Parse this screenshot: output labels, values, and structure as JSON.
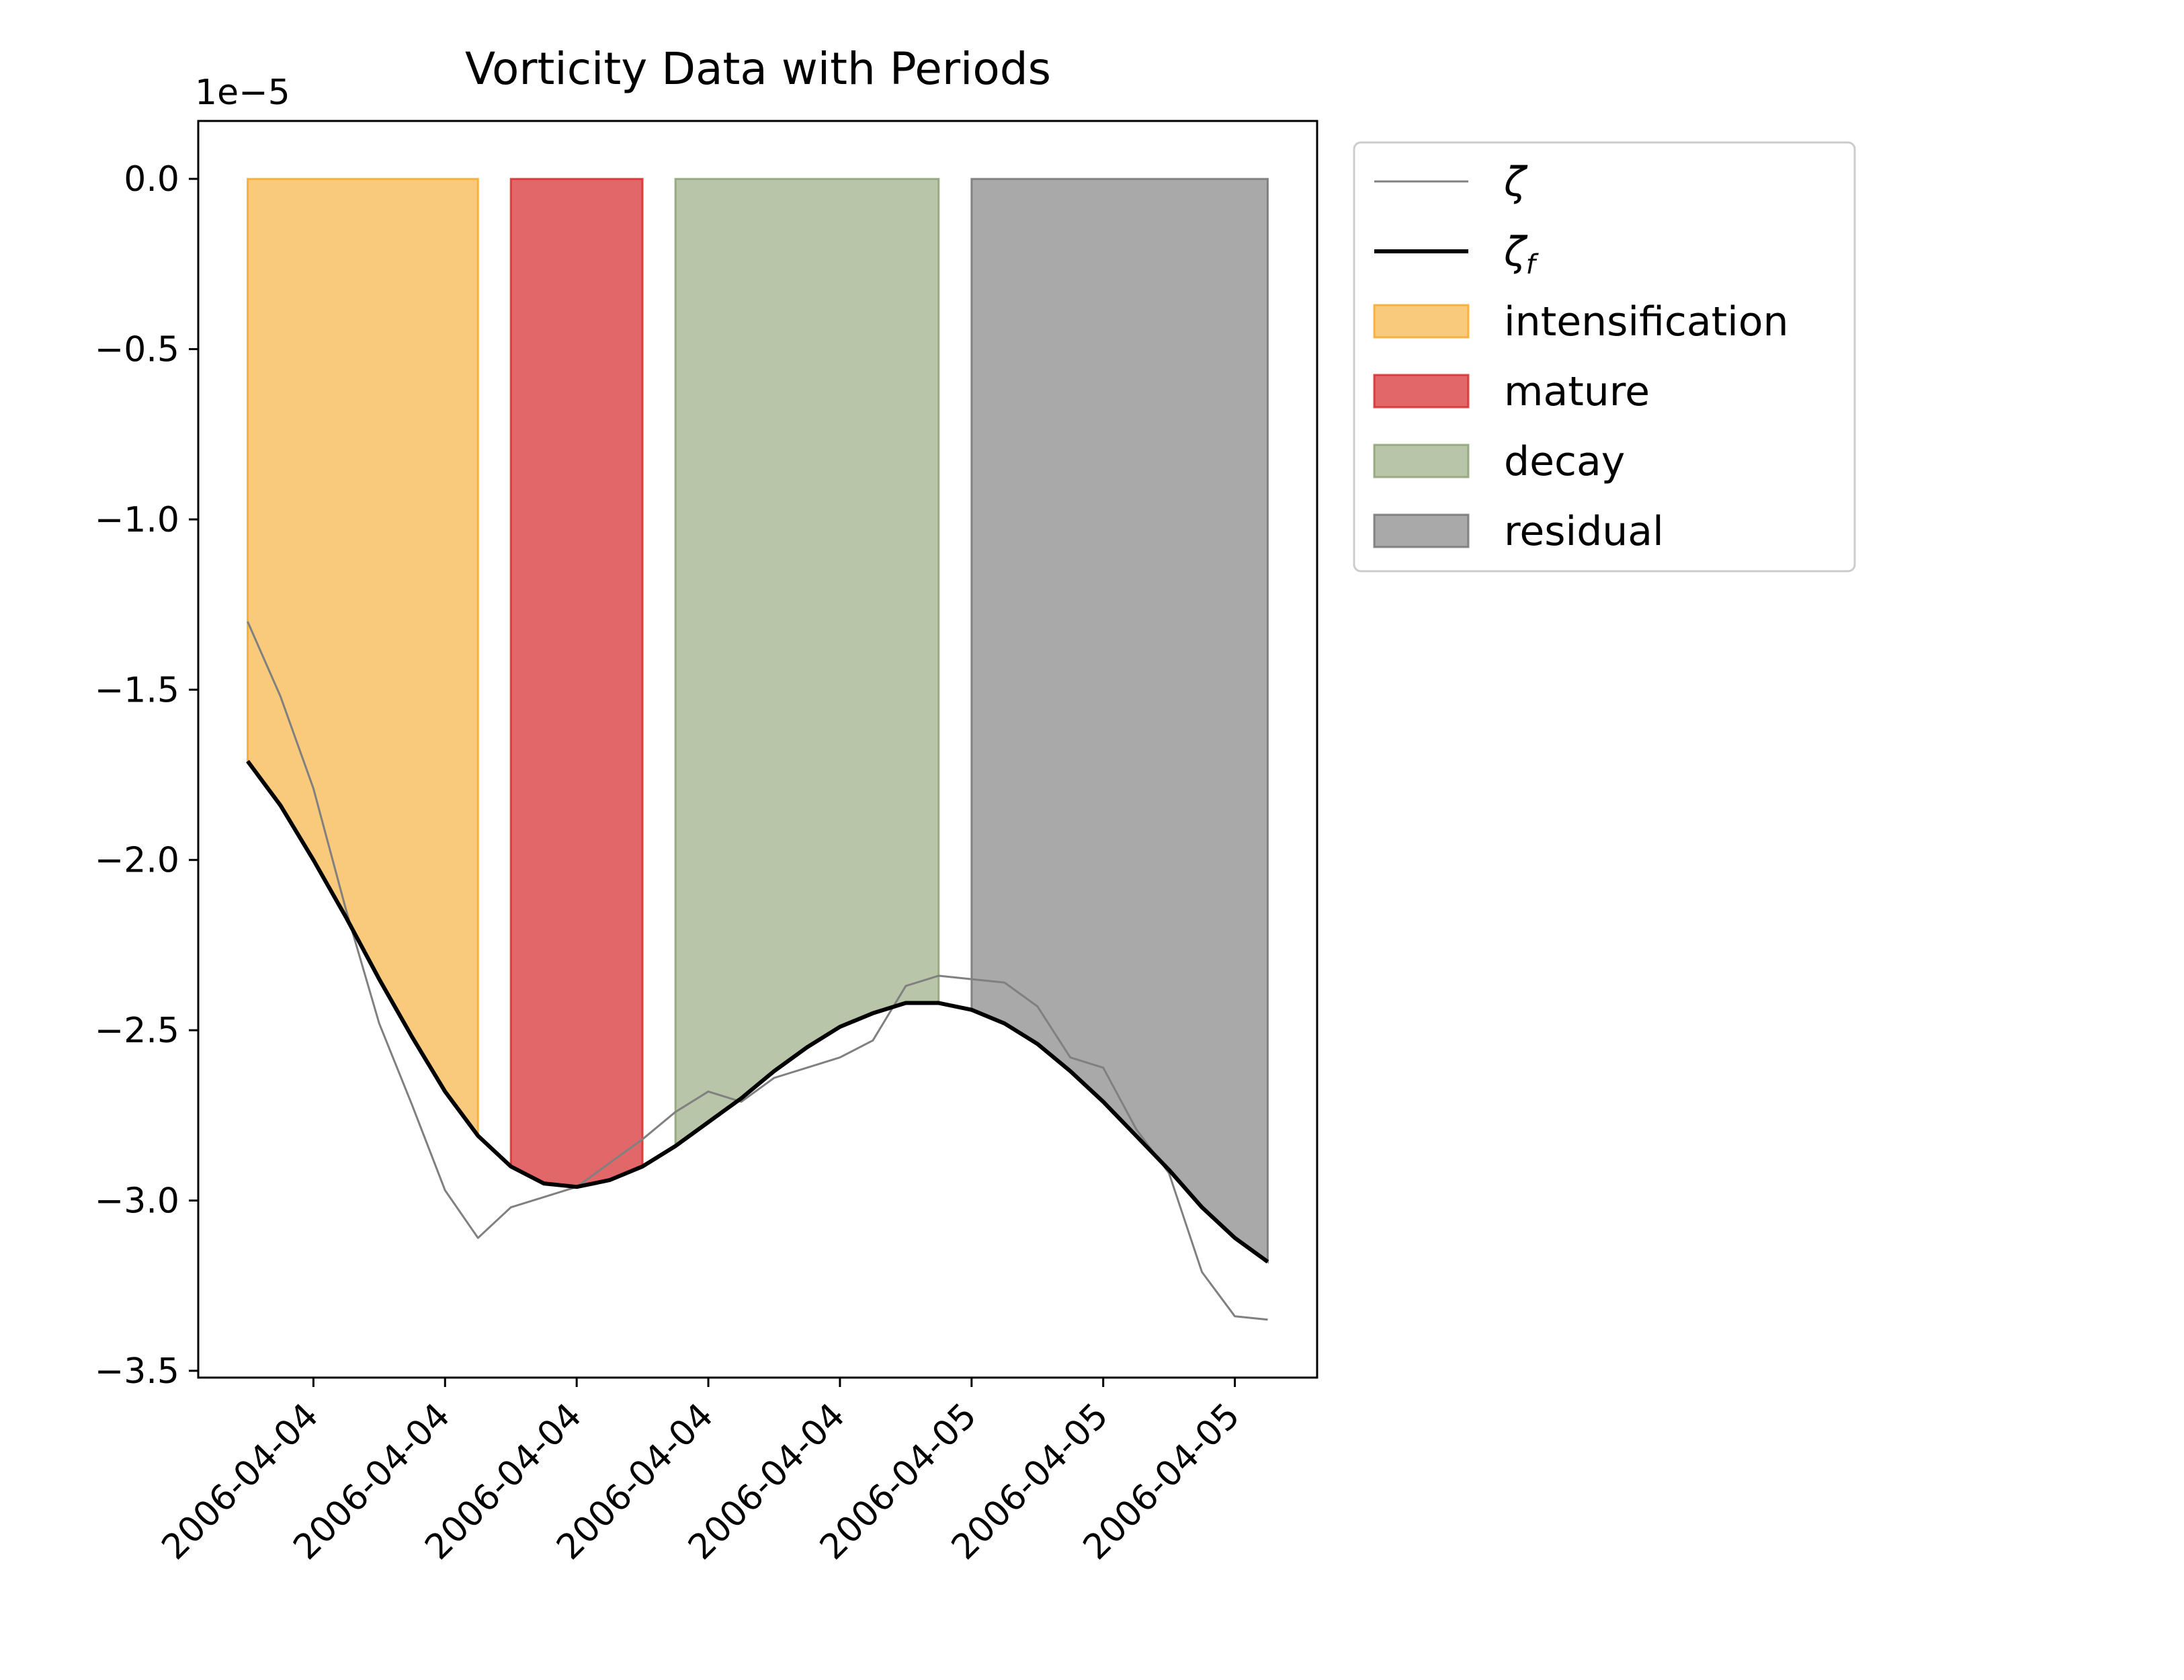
{
  "chart_data": {
    "type": "line",
    "title": "Vorticity Data with Periods",
    "xlabel": "",
    "ylabel": "",
    "y_offset_label": "1e−5",
    "ylim": [
      -3.52,
      0.17
    ],
    "yticks": [
      0.0,
      -0.5,
      -1.0,
      -1.5,
      -2.0,
      -2.5,
      -3.0,
      -3.5
    ],
    "ytick_labels": [
      "0.0",
      "−0.5",
      "−1.0",
      "−1.5",
      "−2.0",
      "−2.5",
      "−3.0",
      "−3.5"
    ],
    "xlim": [
      -0.75,
      16.25
    ],
    "xtick_positions": [
      1,
      3,
      5,
      7,
      9,
      11,
      13,
      15
    ],
    "xtick_labels": [
      "2006-04-04",
      "2006-04-04",
      "2006-04-04",
      "2006-04-04",
      "2006-04-04",
      "2006-04-05",
      "2006-04-05",
      "2006-04-05"
    ],
    "legend_position": "outside-upper-right",
    "grid": false,
    "series": [
      {
        "name": "ζ",
        "color": "#808080",
        "x": [
          0,
          0.5,
          1,
          1.5,
          2,
          2.5,
          3,
          3.5,
          4,
          4.5,
          5,
          5.5,
          6,
          6.5,
          7,
          7.5,
          8,
          8.5,
          9,
          9.5,
          10,
          10.5,
          11,
          11.5,
          12,
          12.5,
          13,
          13.5,
          14,
          14.5,
          15,
          15.5
        ],
        "y": [
          -1.3,
          -1.52,
          -1.79,
          -2.15,
          -2.48,
          -2.72,
          -2.97,
          -3.11,
          -3.02,
          -2.99,
          -2.96,
          -2.89,
          -2.82,
          -2.74,
          -2.68,
          -2.71,
          -2.64,
          -2.61,
          -2.58,
          -2.53,
          -2.37,
          -2.34,
          -2.35,
          -2.36,
          -2.43,
          -2.58,
          -2.61,
          -2.79,
          -2.92,
          -3.21,
          -3.34,
          -3.35
        ]
      },
      {
        "name": "ζ",
        "name_subscript": "f",
        "color": "#000000",
        "x": [
          0,
          0.5,
          1,
          1.5,
          2,
          2.5,
          3,
          3.5,
          4,
          4.5,
          5,
          5.5,
          6,
          6.5,
          7,
          7.5,
          8,
          8.5,
          9,
          9.5,
          10,
          10.5,
          11,
          11.5,
          12,
          12.5,
          13,
          13.5,
          14,
          14.5,
          15,
          15.5
        ],
        "y": [
          -1.71,
          -1.84,
          -2.0,
          -2.17,
          -2.35,
          -2.52,
          -2.68,
          -2.81,
          -2.9,
          -2.95,
          -2.96,
          -2.94,
          -2.9,
          -2.84,
          -2.77,
          -2.7,
          -2.62,
          -2.55,
          -2.49,
          -2.45,
          -2.42,
          -2.42,
          -2.44,
          -2.48,
          -2.54,
          -2.62,
          -2.71,
          -2.81,
          -2.91,
          -3.02,
          -3.11,
          -3.18
        ]
      }
    ],
    "periods": [
      {
        "name": "intensification",
        "x_start": 0,
        "x_end": 3.5,
        "fill": "#f5a623",
        "edge": "#f5a623",
        "alpha": 0.6
      },
      {
        "name": "mature",
        "x_start": 4,
        "x_end": 6,
        "fill": "#d62728",
        "edge": "#d62728",
        "alpha": 0.7
      },
      {
        "name": "decay",
        "x_start": 6.5,
        "x_end": 10.5,
        "fill": "#8a9e70",
        "edge": "#8a9e70",
        "alpha": 0.6
      },
      {
        "name": "residual",
        "x_start": 11,
        "x_end": 15.5,
        "fill": "#707070",
        "edge": "#707070",
        "alpha": 0.6
      }
    ]
  }
}
